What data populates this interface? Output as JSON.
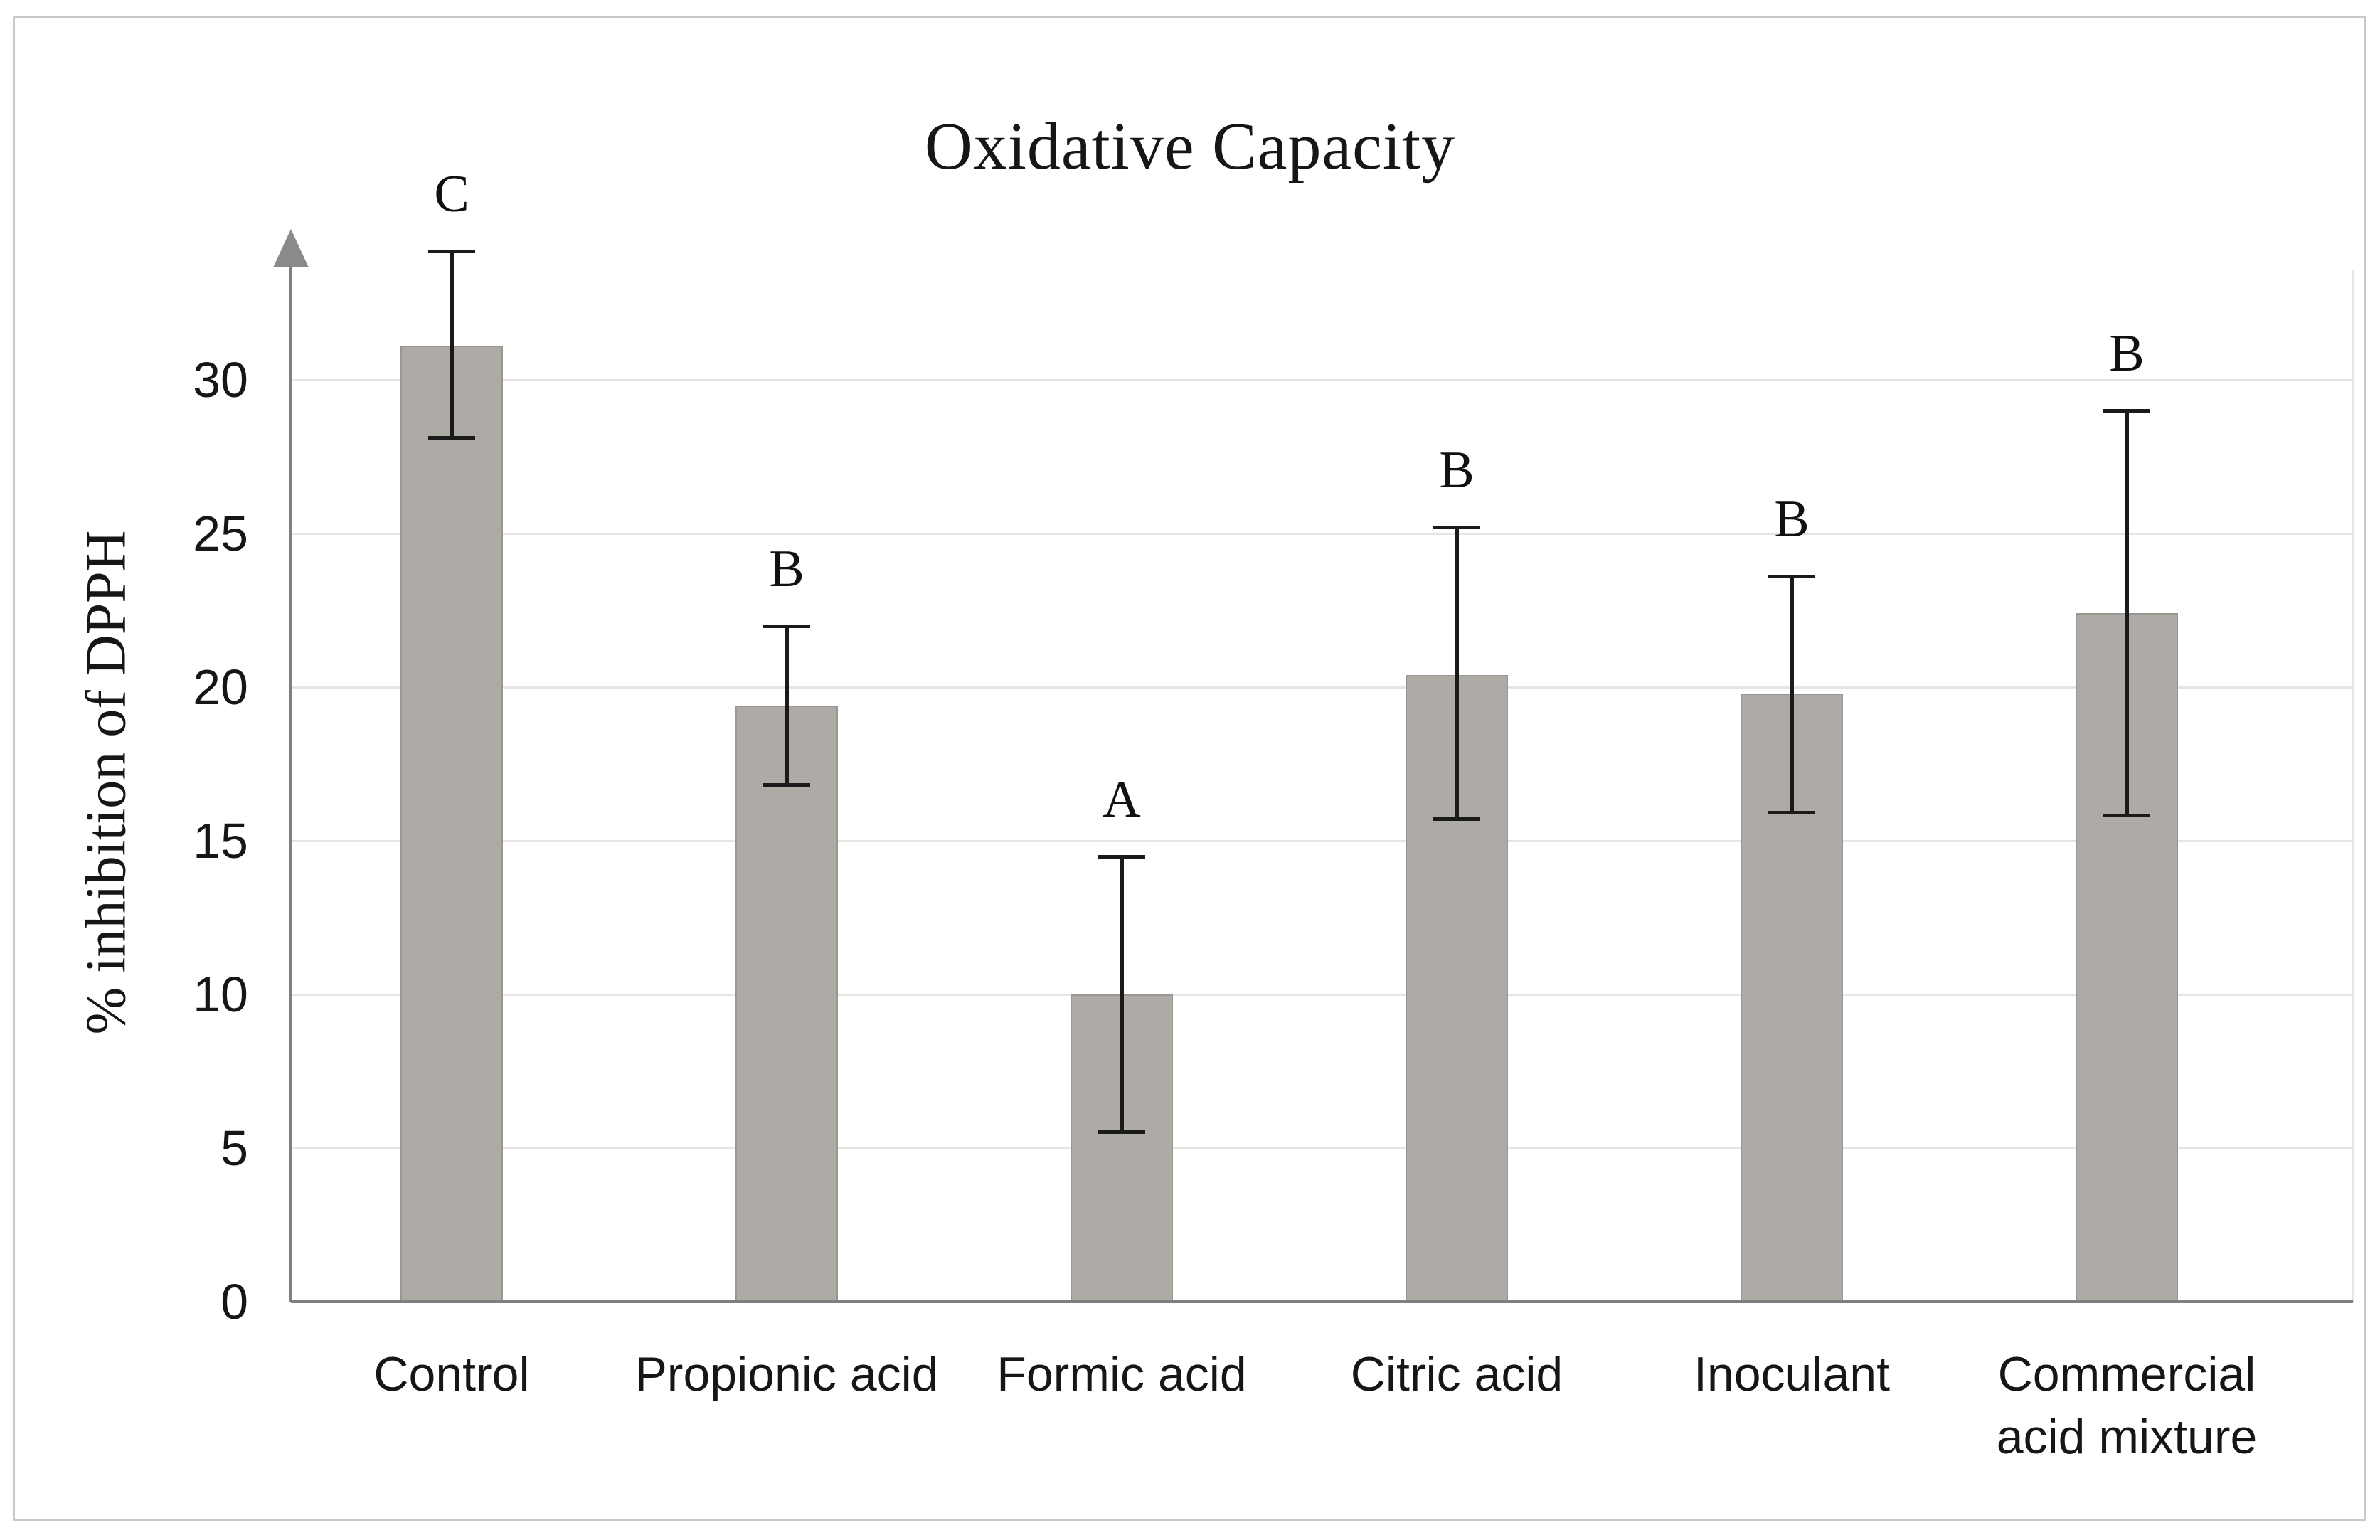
{
  "figure": {
    "background": "#ffffff",
    "border_color": "#c9c9c9"
  },
  "chart_data": {
    "type": "bar",
    "title": "Oxidative Capacity",
    "xlabel": "",
    "ylabel": "% inhibition of DPPH",
    "ylim": [
      0,
      35
    ],
    "yticks": [
      0,
      5,
      10,
      15,
      20,
      25,
      30
    ],
    "grid": "horizontal",
    "legend_position": "none",
    "y_axis_arrow": true,
    "categories": [
      "Control",
      "Propionic acid",
      "Formic acid",
      "Citric acid",
      "Inoculant",
      "Commercial\nacid mixture"
    ],
    "values": [
      31.1,
      19.4,
      10.0,
      20.4,
      19.8,
      22.4
    ],
    "error_low": [
      28.1,
      16.8,
      5.5,
      15.7,
      15.9,
      15.8
    ],
    "error_high": [
      34.2,
      22.0,
      14.5,
      25.2,
      23.6,
      29.0
    ],
    "significance_letters": [
      "C",
      "B",
      "A",
      "B",
      "B",
      "B"
    ],
    "bar_color": "#aeaaa6",
    "bar_border_color": "#9a9692",
    "axis_color": "#7f7f7f",
    "gridline_color": "#e7e5e3",
    "error_bar_color": "#1a1a1a",
    "text_color": "#161616"
  }
}
